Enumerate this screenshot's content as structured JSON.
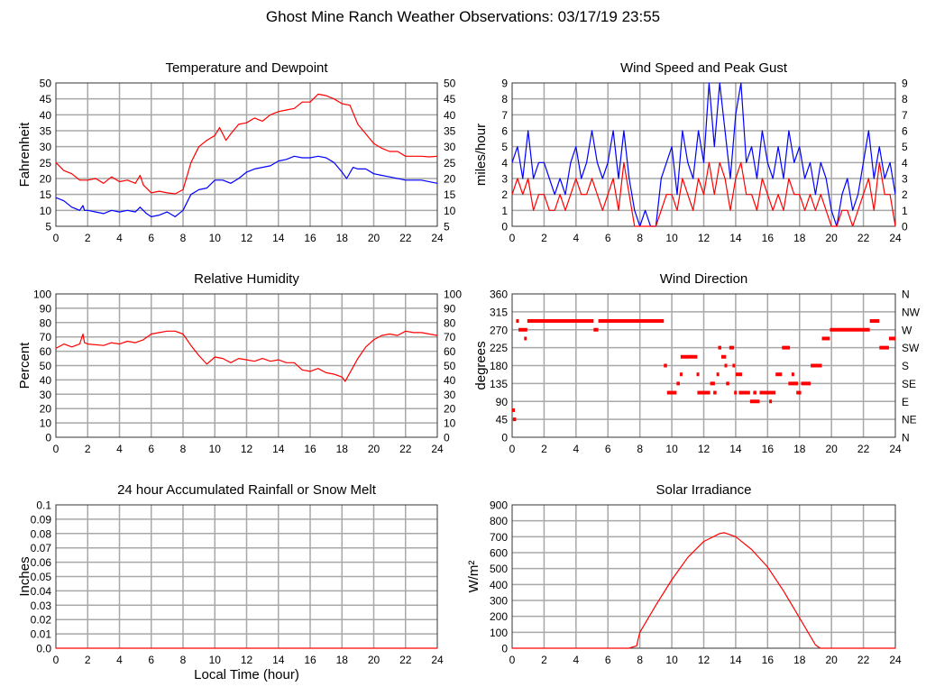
{
  "title": "Ghost Mine Ranch Weather Observations: 03/17/19 23:55",
  "colors": {
    "red": "#ff0000",
    "blue": "#0000ff",
    "grid": "#a8a8a8"
  },
  "chart_data": [
    {
      "id": "temp",
      "type": "line",
      "title": "Temperature and Dewpoint",
      "xlabel": "",
      "ylabel": "Fahrenheit",
      "xlim": [
        0,
        24
      ],
      "ylim": [
        5,
        50
      ],
      "xticks": [
        "0",
        "2",
        "4",
        "6",
        "8",
        "10",
        "12",
        "14",
        "16",
        "18",
        "20",
        "22",
        "24"
      ],
      "yticks": [
        "5",
        "10",
        "15",
        "20",
        "25",
        "30",
        "35",
        "40",
        "45",
        "50"
      ],
      "yticks_right": [
        "5",
        "10",
        "15",
        "20",
        "25",
        "30",
        "35",
        "40",
        "45",
        "50"
      ],
      "series": [
        {
          "name": "Temperature",
          "color": "#ff0000",
          "x": [
            0,
            0.5,
            1,
            1.5,
            2,
            2.5,
            3,
            3.5,
            4,
            4.5,
            5,
            5.3,
            5.5,
            6,
            6.5,
            7,
            7.5,
            8,
            8.5,
            9,
            9.5,
            10,
            10.3,
            10.7,
            11,
            11.5,
            12,
            12.5,
            13,
            13.5,
            14,
            14.5,
            15,
            15.5,
            16,
            16.5,
            17,
            17.5,
            18,
            18.5,
            19,
            19.5,
            20,
            20.5,
            21,
            21.5,
            22,
            22.5,
            23,
            23.5,
            24
          ],
          "y": [
            25,
            22.5,
            21.5,
            19.5,
            19.5,
            20,
            18.5,
            20.5,
            19,
            19.5,
            18.5,
            21,
            18,
            15.5,
            16,
            15.5,
            15.2,
            16.5,
            25,
            30,
            32,
            33.5,
            36,
            32,
            34,
            37,
            37.5,
            39,
            38,
            40,
            41,
            41.5,
            42,
            44,
            44,
            46.5,
            46,
            45,
            43.5,
            43,
            37,
            34,
            31,
            29.5,
            28.5,
            28.5,
            27,
            27,
            27,
            26.8,
            27
          ]
        },
        {
          "name": "Dewpoint",
          "color": "#0000ff",
          "x": [
            0,
            0.5,
            1,
            1.5,
            1.7,
            1.8,
            2,
            2.5,
            3,
            3.5,
            4,
            4.5,
            5,
            5.3,
            5.7,
            6,
            6.5,
            7,
            7.5,
            8,
            8.5,
            9,
            9.5,
            10,
            10.5,
            11,
            11.5,
            12,
            12.5,
            13,
            13.5,
            14,
            14.5,
            15,
            15.5,
            16,
            16.5,
            17,
            17.5,
            18,
            18.3,
            18.7,
            19,
            19.5,
            20,
            20.5,
            21,
            22,
            23,
            24
          ],
          "y": [
            14,
            13,
            11,
            10,
            11.5,
            10,
            10,
            9.5,
            9,
            10,
            9.5,
            10,
            9.5,
            11,
            9,
            8,
            8.5,
            9.5,
            8,
            10,
            15,
            16.5,
            17,
            19.5,
            19.5,
            18.5,
            20,
            22,
            23,
            23.5,
            24,
            25.5,
            26,
            27,
            26.5,
            26.5,
            27,
            26.5,
            25,
            22,
            20,
            23.5,
            23,
            23,
            21.5,
            21,
            20.5,
            19.5,
            19.5,
            18.5
          ]
        }
      ]
    },
    {
      "id": "wind",
      "type": "line",
      "title": "Wind Speed and Peak Gust",
      "xlabel": "",
      "ylabel": "miles/hour",
      "xlim": [
        0,
        24
      ],
      "ylim": [
        0,
        9
      ],
      "xticks": [
        "0",
        "2",
        "4",
        "6",
        "8",
        "10",
        "12",
        "14",
        "16",
        "18",
        "20",
        "22",
        "24"
      ],
      "yticks": [
        "0",
        "1",
        "2",
        "3",
        "4",
        "5",
        "6",
        "7",
        "8",
        "9"
      ],
      "yticks_right": [
        "0",
        "1",
        "2",
        "3",
        "4",
        "5",
        "6",
        "7",
        "8",
        "9"
      ],
      "x_step_hours": 0.3333,
      "series": [
        {
          "name": "Peak Gust",
          "color": "#0000ff",
          "values": [
            4,
            5,
            3,
            6,
            3,
            4,
            4,
            3,
            2,
            3,
            2,
            4,
            5,
            3,
            4,
            6,
            4,
            3,
            4,
            6,
            3,
            6,
            3,
            1,
            0,
            1,
            0,
            0,
            3,
            4,
            5,
            2,
            6,
            4,
            3,
            6,
            4,
            9,
            5,
            9,
            6,
            3,
            7,
            9,
            4,
            5,
            3,
            6,
            4,
            3,
            5,
            3,
            6,
            4,
            5,
            3,
            4,
            2,
            4,
            3,
            1,
            0,
            2,
            3,
            1,
            2,
            4,
            6,
            3,
            5,
            3,
            4,
            2
          ]
        },
        {
          "name": "Wind Speed",
          "color": "#ff0000",
          "values": [
            2,
            3,
            2,
            3,
            1,
            2,
            2,
            1,
            1,
            2,
            1,
            2,
            3,
            2,
            2,
            3,
            2,
            1,
            2,
            3,
            1,
            4,
            2,
            0,
            0,
            0,
            0,
            0,
            1,
            2,
            2,
            1,
            3,
            2,
            1,
            3,
            2,
            4,
            2,
            4,
            3,
            1,
            3,
            4,
            2,
            2,
            1,
            3,
            2,
            1,
            2,
            1,
            3,
            2,
            2,
            1,
            2,
            1,
            2,
            1,
            0,
            0,
            1,
            1,
            0,
            1,
            2,
            3,
            1,
            4,
            2,
            2,
            0
          ]
        }
      ]
    },
    {
      "id": "rh",
      "type": "line",
      "title": "Relative Humidity",
      "xlabel": "",
      "ylabel": "Percent",
      "xlim": [
        0,
        24
      ],
      "ylim": [
        0,
        100
      ],
      "xticks": [
        "0",
        "2",
        "4",
        "6",
        "8",
        "10",
        "12",
        "14",
        "16",
        "18",
        "20",
        "22",
        "24"
      ],
      "yticks": [
        "0",
        "10",
        "20",
        "30",
        "40",
        "50",
        "60",
        "70",
        "80",
        "90",
        "100"
      ],
      "yticks_right": [
        "0",
        "10",
        "20",
        "30",
        "40",
        "50",
        "60",
        "70",
        "80",
        "90",
        "100"
      ],
      "series": [
        {
          "name": "Relative Humidity",
          "color": "#ff0000",
          "x": [
            0,
            0.5,
            1,
            1.5,
            1.7,
            1.8,
            2,
            3,
            3.5,
            4,
            4.5,
            5,
            5.5,
            6,
            6.5,
            7,
            7.5,
            8,
            8.5,
            9,
            9.5,
            10,
            10.5,
            11,
            11.5,
            12,
            12.5,
            13,
            13.5,
            14,
            14.5,
            15,
            15.5,
            16,
            16.5,
            17,
            17.5,
            18,
            18.2,
            18.5,
            19,
            19.5,
            20,
            20.5,
            21,
            21.5,
            22,
            22.5,
            23,
            24
          ],
          "y": [
            62,
            65,
            63,
            65,
            72,
            66,
            65,
            64,
            66,
            65,
            67,
            66,
            68,
            72,
            73,
            74,
            74,
            72,
            64,
            57,
            51,
            56,
            55,
            52,
            55,
            54,
            53,
            55,
            53,
            54,
            52,
            52,
            47,
            46,
            48,
            45,
            44,
            42,
            39,
            45,
            55,
            63,
            68,
            71,
            72,
            71,
            74,
            73,
            73,
            71
          ]
        }
      ]
    },
    {
      "id": "wdir",
      "type": "scatter",
      "title": "Wind Direction",
      "xlabel": "",
      "ylabel": "degrees",
      "xlim": [
        0,
        24
      ],
      "ylim": [
        0,
        360
      ],
      "xticks": [
        "0",
        "2",
        "4",
        "6",
        "8",
        "10",
        "12",
        "14",
        "16",
        "18",
        "20",
        "22",
        "24"
      ],
      "yticks": [
        "0",
        "45",
        "90",
        "135",
        "180",
        "225",
        "270",
        "315",
        "360"
      ],
      "yticks_right": [
        "N",
        "NE",
        "E",
        "SE",
        "S",
        "SW",
        "W",
        "NW",
        "N"
      ],
      "series": [
        {
          "name": "Wind Direction",
          "color": "#ff0000",
          "segments": [
            [
              0,
              0.05,
              68
            ],
            [
              0.05,
              0.25,
              45
            ],
            [
              0.25,
              0.4,
              292
            ],
            [
              0.4,
              0.95,
              270
            ],
            [
              0.75,
              0.85,
              248
            ],
            [
              0.95,
              5.1,
              292
            ],
            [
              5.1,
              5.4,
              270
            ],
            [
              5.4,
              9.5,
              292
            ],
            [
              9.5,
              9.7,
              180
            ],
            [
              9.7,
              10.3,
              112
            ],
            [
              10.3,
              10.5,
              135
            ],
            [
              10.5,
              10.6,
              158
            ],
            [
              10.55,
              11.6,
              202
            ],
            [
              11.55,
              11.65,
              158
            ],
            [
              11.6,
              12.4,
              112
            ],
            [
              12.4,
              12.7,
              135
            ],
            [
              12.6,
              12.8,
              112
            ],
            [
              12.8,
              12.9,
              158
            ],
            [
              12.9,
              13.1,
              225
            ],
            [
              13.1,
              13.4,
              202
            ],
            [
              13.3,
              13.4,
              180
            ],
            [
              13.4,
              13.6,
              135
            ],
            [
              13.6,
              13.9,
              225
            ],
            [
              13.8,
              13.9,
              180
            ],
            [
              13.9,
              14.0,
              112
            ],
            [
              14.0,
              14.4,
              158
            ],
            [
              14.2,
              14.9,
              112
            ],
            [
              14.9,
              15.5,
              90
            ],
            [
              15.1,
              15.3,
              112
            ],
            [
              15.5,
              16.5,
              112
            ],
            [
              16.1,
              16.25,
              90
            ],
            [
              16.5,
              16.9,
              158
            ],
            [
              16.9,
              17.4,
              225
            ],
            [
              17.3,
              17.9,
              135
            ],
            [
              17.5,
              17.6,
              158
            ],
            [
              17.8,
              18.1,
              112
            ],
            [
              18.1,
              18.7,
              135
            ],
            [
              18.7,
              19.4,
              180
            ],
            [
              19.4,
              19.9,
              248
            ],
            [
              19.9,
              22.4,
              270
            ],
            [
              22.4,
              23.0,
              292
            ],
            [
              23.0,
              23.6,
              225
            ],
            [
              23.6,
              24,
              248
            ]
          ]
        }
      ]
    },
    {
      "id": "rain",
      "type": "line",
      "title": "24 hour Accumulated Rainfall or Snow Melt",
      "xlabel": "Local Time (hour)",
      "ylabel": "Inches",
      "xlim": [
        0,
        24
      ],
      "ylim": [
        0,
        0.1
      ],
      "xticks": [
        "0",
        "2",
        "4",
        "6",
        "8",
        "10",
        "12",
        "14",
        "16",
        "18",
        "20",
        "22",
        "24"
      ],
      "yticks": [
        "0.0",
        "0.01",
        "0.02",
        "0.03",
        "0.04",
        "0.05",
        "0.06",
        "0.07",
        "0.08",
        "0.09",
        "0.1"
      ],
      "series": [
        {
          "name": "Rainfall",
          "color": "#ff0000",
          "x": [
            0,
            24
          ],
          "y": [
            0,
            0
          ]
        }
      ]
    },
    {
      "id": "solar",
      "type": "line",
      "title": "Solar Irradiance",
      "xlabel": "",
      "ylabel": "W/m²",
      "xlim": [
        0,
        24
      ],
      "ylim": [
        0,
        900
      ],
      "xticks": [
        "0",
        "2",
        "4",
        "6",
        "8",
        "10",
        "12",
        "14",
        "16",
        "18",
        "20",
        "22",
        "24"
      ],
      "yticks": [
        "0",
        "100",
        "200",
        "300",
        "400",
        "500",
        "600",
        "700",
        "800",
        "900"
      ],
      "series": [
        {
          "name": "Solar Irradiance",
          "color": "#ff0000",
          "x": [
            0,
            7.3,
            7.8,
            7.9,
            8,
            9,
            10,
            11,
            12,
            13,
            13.3,
            14,
            15,
            16,
            17,
            18,
            19,
            19.3,
            24
          ],
          "y": [
            0,
            0,
            15,
            60,
            100,
            270,
            430,
            570,
            670,
            720,
            725,
            700,
            620,
            510,
            360,
            190,
            20,
            0,
            0
          ]
        }
      ]
    }
  ]
}
